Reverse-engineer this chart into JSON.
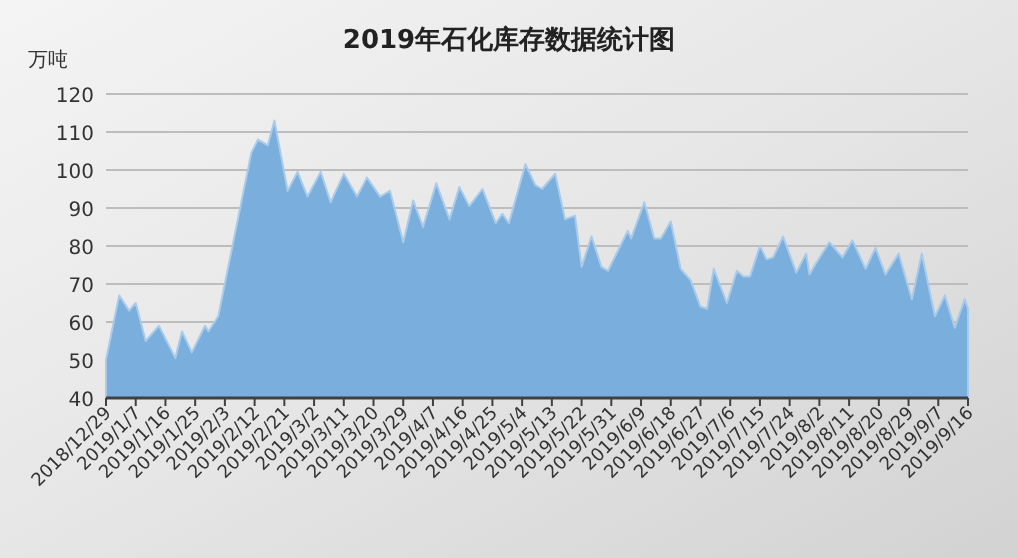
{
  "chart_data": {
    "type": "area",
    "title": "2019年石化库存数据统计图",
    "ylabel": "万吨",
    "grid": "y",
    "xlim": [
      "2018-12-29",
      "2019-09-16"
    ],
    "ylim": [
      40,
      120
    ],
    "yticks": [
      40,
      50,
      60,
      70,
      80,
      90,
      100,
      110,
      120
    ],
    "xticks": [
      {
        "value": "2018-12-29",
        "label": "2018/12/29"
      },
      {
        "value": "2019-01-07",
        "label": "2019/1/7"
      },
      {
        "value": "2019-01-16",
        "label": "2019/1/16"
      },
      {
        "value": "2019-01-25",
        "label": "2019/1/25"
      },
      {
        "value": "2019-02-03",
        "label": "2019/2/3"
      },
      {
        "value": "2019-02-12",
        "label": "2019/2/12"
      },
      {
        "value": "2019-02-21",
        "label": "2019/2/21"
      },
      {
        "value": "2019-03-02",
        "label": "2019/3/2"
      },
      {
        "value": "2019-03-11",
        "label": "2019/3/11"
      },
      {
        "value": "2019-03-20",
        "label": "2019/3/20"
      },
      {
        "value": "2019-03-29",
        "label": "2019/3/29"
      },
      {
        "value": "2019-04-07",
        "label": "2019/4/7"
      },
      {
        "value": "2019-04-16",
        "label": "2019/4/16"
      },
      {
        "value": "2019-04-25",
        "label": "2019/4/25"
      },
      {
        "value": "2019-05-04",
        "label": "2019/5/4"
      },
      {
        "value": "2019-05-13",
        "label": "2019/5/13"
      },
      {
        "value": "2019-05-22",
        "label": "2019/5/22"
      },
      {
        "value": "2019-05-31",
        "label": "2019/5/31"
      },
      {
        "value": "2019-06-09",
        "label": "2019/6/9"
      },
      {
        "value": "2019-06-18",
        "label": "2019/6/18"
      },
      {
        "value": "2019-06-27",
        "label": "2019/6/27"
      },
      {
        "value": "2019-07-06",
        "label": "2019/7/6"
      },
      {
        "value": "2019-07-15",
        "label": "2019/7/15"
      },
      {
        "value": "2019-07-24",
        "label": "2019/7/24"
      },
      {
        "value": "2019-08-02",
        "label": "2019/8/2"
      },
      {
        "value": "2019-08-11",
        "label": "2019/8/11"
      },
      {
        "value": "2019-08-20",
        "label": "2019/8/20"
      },
      {
        "value": "2019-08-29",
        "label": "2019/8/29"
      },
      {
        "value": "2019-09-07",
        "label": "2019/9/7"
      },
      {
        "value": "2019-09-16",
        "label": "2019/9/16"
      }
    ],
    "series": [
      {
        "color": "#7aaedc",
        "x": [
          "2018-12-29",
          "2019-01-02",
          "2019-01-05",
          "2019-01-07",
          "2019-01-10",
          "2019-01-14",
          "2019-01-19",
          "2019-01-21",
          "2019-01-24",
          "2019-01-28",
          "2019-01-29",
          "2019-02-01",
          "2019-02-11",
          "2019-02-13",
          "2019-02-16",
          "2019-02-18",
          "2019-02-22",
          "2019-02-25",
          "2019-02-28",
          "2019-03-04",
          "2019-03-07",
          "2019-03-11",
          "2019-03-15",
          "2019-03-18",
          "2019-03-22",
          "2019-03-25",
          "2019-03-29",
          "2019-04-01",
          "2019-04-04",
          "2019-04-08",
          "2019-04-12",
          "2019-04-15",
          "2019-04-18",
          "2019-04-22",
          "2019-04-26",
          "2019-04-28",
          "2019-04-30",
          "2019-05-05",
          "2019-05-08",
          "2019-05-10",
          "2019-05-14",
          "2019-05-17",
          "2019-05-20",
          "2019-05-22",
          "2019-05-25",
          "2019-05-28",
          "2019-05-30",
          "2019-06-05",
          "2019-06-06",
          "2019-06-10",
          "2019-06-13",
          "2019-06-15",
          "2019-06-18",
          "2019-06-21",
          "2019-06-24",
          "2019-06-27",
          "2019-06-29",
          "2019-07-01",
          "2019-07-05",
          "2019-07-08",
          "2019-07-10",
          "2019-07-12",
          "2019-07-15",
          "2019-07-17",
          "2019-07-19",
          "2019-07-22",
          "2019-07-26",
          "2019-07-29",
          "2019-07-30",
          "2019-08-01",
          "2019-08-05",
          "2019-08-09",
          "2019-08-12",
          "2019-08-16",
          "2019-08-19",
          "2019-08-22",
          "2019-08-26",
          "2019-08-30",
          "2019-09-02",
          "2019-09-06",
          "2019-09-09",
          "2019-09-12",
          "2019-09-15",
          "2019-09-16"
        ],
        "values": [
          50,
          67,
          63,
          65,
          55,
          59,
          50.5,
          57.5,
          52,
          59,
          57.5,
          61.5,
          104.5,
          108,
          106.5,
          113,
          94.5,
          99.5,
          93,
          99.5,
          91.5,
          99,
          93,
          98,
          93,
          94.5,
          81,
          92,
          85,
          96.5,
          87,
          95.5,
          90.5,
          95,
          86,
          88.5,
          86,
          101.5,
          96,
          95,
          99,
          87,
          88,
          74.5,
          82.5,
          74.5,
          73.5,
          84,
          82,
          91.5,
          82,
          82,
          86.5,
          74,
          71,
          64,
          63.5,
          74,
          65,
          73.5,
          72,
          72,
          80,
          76.5,
          77,
          82.5,
          73,
          78,
          72.5,
          75.5,
          81,
          77,
          81.5,
          74,
          79.5,
          72.5,
          78,
          66,
          78,
          61.5,
          67,
          58.5,
          66,
          63.5
        ]
      }
    ]
  }
}
